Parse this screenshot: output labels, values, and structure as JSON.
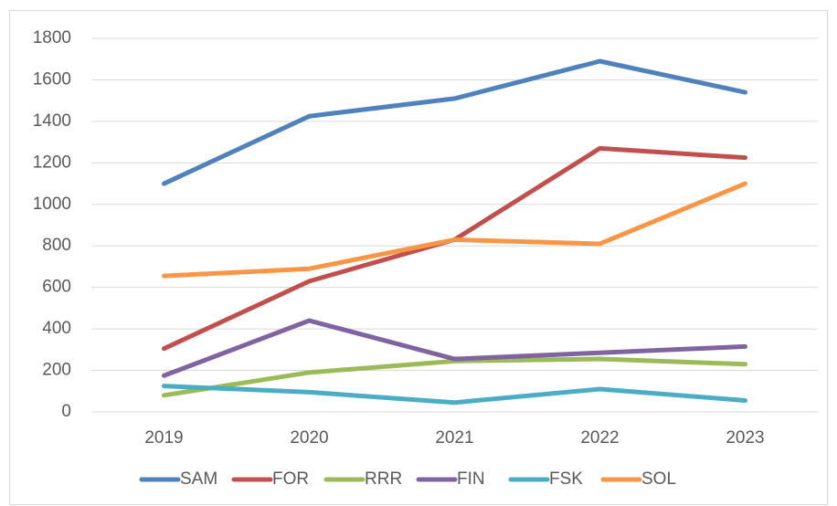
{
  "chart_data": {
    "type": "line",
    "categories": [
      "2019",
      "2020",
      "2021",
      "2022",
      "2023"
    ],
    "series": [
      {
        "name": "SAM",
        "color": "#4f81bd",
        "values": [
          1100,
          1425,
          1510,
          1690,
          1540
        ]
      },
      {
        "name": "FOR",
        "color": "#c0504d",
        "values": [
          305,
          630,
          830,
          1270,
          1225
        ]
      },
      {
        "name": "RRR",
        "color": "#9bbb59",
        "values": [
          80,
          190,
          245,
          255,
          230
        ]
      },
      {
        "name": "FIN",
        "color": "#8064a2",
        "values": [
          175,
          440,
          255,
          285,
          315
        ]
      },
      {
        "name": "FSK",
        "color": "#4bacc6",
        "values": [
          125,
          95,
          45,
          110,
          55
        ]
      },
      {
        "name": "SOL",
        "color": "#f79646",
        "values": [
          655,
          690,
          830,
          810,
          1100
        ]
      }
    ],
    "ylim": [
      0,
      1800
    ],
    "yticks": [
      0,
      200,
      400,
      600,
      800,
      1000,
      1200,
      1400,
      1600,
      1800
    ],
    "grid": true,
    "legend": "bottom"
  }
}
